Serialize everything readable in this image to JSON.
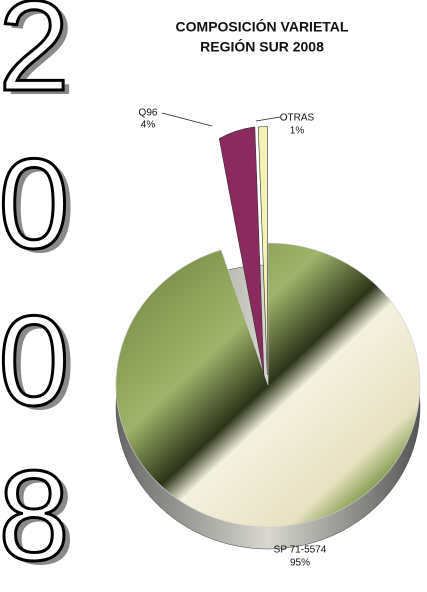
{
  "year_digits": [
    "2",
    "0",
    "0",
    "8"
  ],
  "chart_data": {
    "type": "pie",
    "title": [
      "COMPOSICIÓN VARIETAL",
      "REGIÓN SUR 2008"
    ],
    "categories": [
      "SP 71-5574",
      "Q96",
      "OTRAS"
    ],
    "values": [
      95,
      4,
      1
    ],
    "value_labels": [
      "95%",
      "4%",
      "1%"
    ],
    "colors": [
      "#7f9a4a",
      "#8b2a5e",
      "#f3f1b4"
    ]
  }
}
